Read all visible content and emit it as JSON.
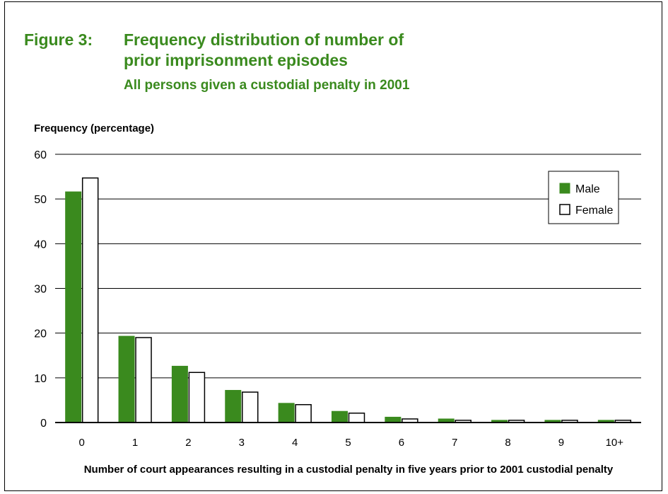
{
  "colors": {
    "title": "#3a8a1e",
    "male": "#3a8a1e",
    "female": "#ffffff",
    "outline": "#000000"
  },
  "figure_label": "Figure 3:",
  "title_line_1": "Frequency distribution of number of",
  "title_line_2": "prior imprisonment episodes",
  "chart_data": {
    "type": "bar",
    "title": "Figure 3: Frequency distribution of number of prior imprisonment episodes",
    "subtitle": "All persons given a custodial penalty in 2001",
    "xlabel": "Number of court appearances resulting in a custodial penalty in five years prior to 2001 custodial penalty",
    "ylabel": "Frequency (percentage)",
    "categories": [
      "0",
      "1",
      "2",
      "3",
      "4",
      "5",
      "6",
      "7",
      "8",
      "9",
      "10+"
    ],
    "series": [
      {
        "name": "Male",
        "values": [
          51.6,
          19.3,
          12.6,
          7.2,
          4.3,
          2.5,
          1.2,
          0.8,
          0.5,
          0.5,
          0.5
        ]
      },
      {
        "name": "Female",
        "values": [
          54.7,
          19.0,
          11.2,
          6.8,
          4.0,
          2.1,
          0.8,
          0.5,
          0.5,
          0.5,
          0.5
        ]
      }
    ],
    "ylim": [
      0,
      60
    ],
    "yticks": [
      0,
      10,
      20,
      30,
      40,
      50,
      60
    ],
    "grid": true,
    "legend_position": "top-right"
  }
}
